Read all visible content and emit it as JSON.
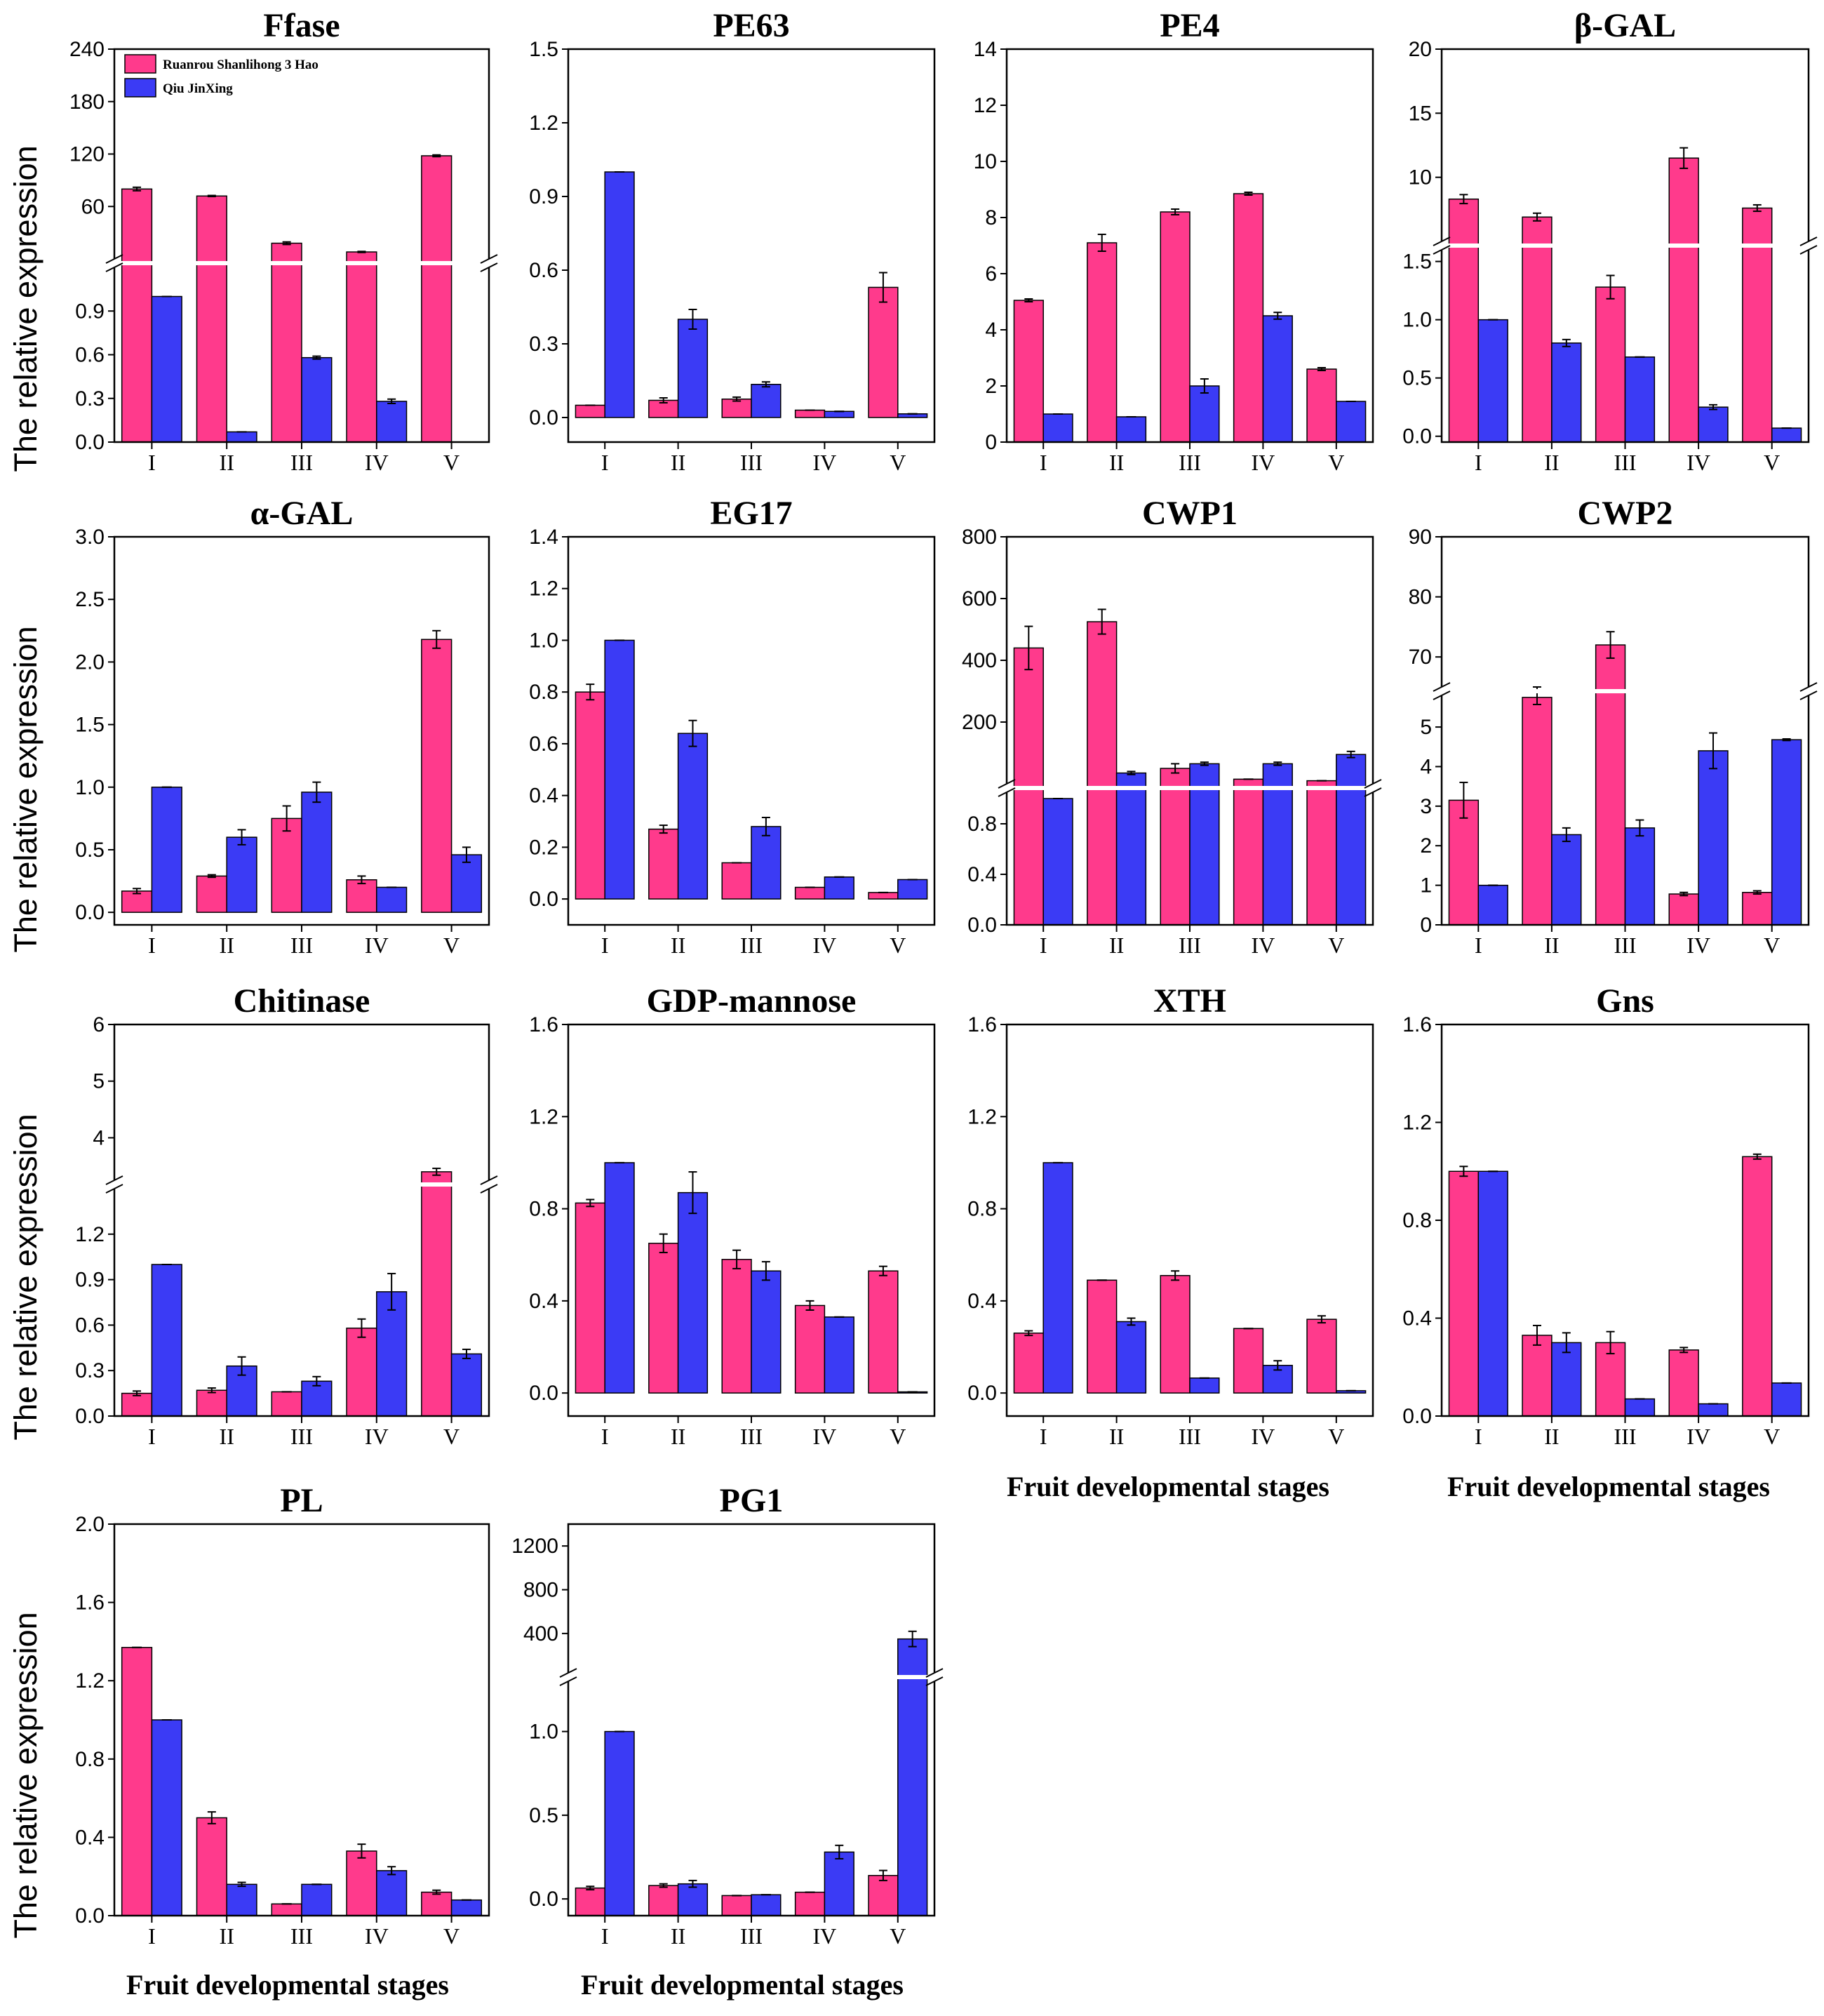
{
  "colors": {
    "ruanrou": "#ff3a8c",
    "qiu": "#3b3bf5",
    "axis": "#000000"
  },
  "legend": {
    "series": [
      "Ruanrou Shanlihong 3 Hao",
      "Qiu JinXing"
    ]
  },
  "labels": {
    "ylabel": "The relative expression",
    "xlabel": "Fruit developmental stages"
  },
  "chart_data": [
    {
      "type": "bar",
      "title": "Ffase",
      "categories": [
        "I",
        "II",
        "III",
        "IV",
        "V"
      ],
      "broken_axis": {
        "lower": [
          0,
          1.2
        ],
        "upper": [
          0,
          240
        ],
        "ticks_lower": [
          "0.0",
          "0.3",
          "0.6",
          "0.9"
        ],
        "ticks_upper": [
          "60",
          "120",
          "180",
          "240"
        ]
      },
      "series": [
        {
          "name": "Ruanrou Shanlihong 3 Hao",
          "values": [
            80,
            72,
            18,
            8,
            118
          ],
          "errors": [
            2,
            0.6,
            1.5,
            0.6,
            1
          ]
        },
        {
          "name": "Qiu JinXing",
          "values": [
            1.0,
            0.07,
            0.58,
            0.28,
            0
          ],
          "errors": [
            0,
            0,
            0.01,
            0.015,
            0
          ]
        }
      ]
    },
    {
      "type": "bar",
      "title": "PE63",
      "categories": [
        "I",
        "II",
        "III",
        "IV",
        "V"
      ],
      "ylim": [
        -0.1,
        1.5
      ],
      "yticks": [
        "0.0",
        "0.3",
        "0.6",
        "0.9",
        "1.2",
        "1.5"
      ],
      "series": [
        {
          "name": "Ruanrou Shanlihong 3 Hao",
          "values": [
            0.05,
            0.07,
            0.075,
            0.03,
            0.53
          ],
          "errors": [
            0,
            0.01,
            0.008,
            0,
            0.06
          ]
        },
        {
          "name": "Qiu JinXing",
          "values": [
            1.0,
            0.4,
            0.135,
            0.025,
            0.015
          ],
          "errors": [
            0,
            0.04,
            0.01,
            0,
            0
          ]
        }
      ]
    },
    {
      "type": "bar",
      "title": "PE4",
      "categories": [
        "I",
        "II",
        "III",
        "IV",
        "V"
      ],
      "ylim": [
        0,
        14
      ],
      "yticks": [
        "0",
        "2",
        "4",
        "6",
        "8",
        "10",
        "12",
        "14"
      ],
      "series": [
        {
          "name": "Ruanrou Shanlihong 3 Hao",
          "values": [
            5.05,
            7.1,
            8.2,
            8.85,
            2.6
          ],
          "errors": [
            0.05,
            0.3,
            0.1,
            0.05,
            0.05
          ]
        },
        {
          "name": "Qiu JinXing",
          "values": [
            1.0,
            0.9,
            2.0,
            4.5,
            1.45
          ],
          "errors": [
            0,
            0,
            0.25,
            0.12,
            0
          ]
        }
      ]
    },
    {
      "type": "bar",
      "title": "β-GAL",
      "categories": [
        "I",
        "II",
        "III",
        "IV",
        "V"
      ],
      "broken_axis": {
        "lower": [
          -0.05,
          1.6
        ],
        "upper": [
          5,
          20
        ],
        "ticks_lower": [
          "0.0",
          "0.5",
          "1.0",
          "1.5"
        ],
        "ticks_upper": [
          "10",
          "15",
          "20"
        ]
      },
      "series": [
        {
          "name": "Ruanrou Shanlihong 3 Hao",
          "values": [
            8.3,
            6.9,
            1.28,
            11.5,
            7.6
          ],
          "errors": [
            0.35,
            0.3,
            0.1,
            0.8,
            0.25
          ]
        },
        {
          "name": "Qiu JinXing",
          "values": [
            1.0,
            0.8,
            0.68,
            0.25,
            0.07
          ],
          "errors": [
            0,
            0.03,
            0,
            0.02,
            0
          ]
        }
      ]
    },
    {
      "type": "bar",
      "title": "α-GAL",
      "categories": [
        "I",
        "II",
        "III",
        "IV",
        "V"
      ],
      "ylim": [
        -0.1,
        3.0
      ],
      "yticks": [
        "0.0",
        "0.5",
        "1.0",
        "1.5",
        "2.0",
        "2.5",
        "3.0"
      ],
      "series": [
        {
          "name": "Ruanrou Shanlihong 3 Hao",
          "values": [
            0.17,
            0.29,
            0.75,
            0.26,
            2.18
          ],
          "errors": [
            0.02,
            0.01,
            0.1,
            0.03,
            0.07
          ]
        },
        {
          "name": "Qiu JinXing",
          "values": [
            1.0,
            0.6,
            0.96,
            0.2,
            0.46
          ],
          "errors": [
            0,
            0.06,
            0.08,
            0,
            0.06
          ]
        }
      ]
    },
    {
      "type": "bar",
      "title": "EG17",
      "categories": [
        "I",
        "II",
        "III",
        "IV",
        "V"
      ],
      "ylim": [
        -0.1,
        1.4
      ],
      "yticks": [
        "0.0",
        "0.2",
        "0.4",
        "0.6",
        "0.8",
        "1.0",
        "1.2",
        "1.4"
      ],
      "series": [
        {
          "name": "Ruanrou Shanlihong 3 Hao",
          "values": [
            0.8,
            0.27,
            0.14,
            0.045,
            0.025
          ],
          "errors": [
            0.03,
            0.015,
            0,
            0,
            0
          ]
        },
        {
          "name": "Qiu JinXing",
          "values": [
            1.0,
            0.64,
            0.28,
            0.085,
            0.075
          ],
          "errors": [
            0,
            0.05,
            0.035,
            0,
            0
          ]
        }
      ]
    },
    {
      "type": "bar",
      "title": "CWP1",
      "categories": [
        "I",
        "II",
        "III",
        "IV",
        "V"
      ],
      "broken_axis": {
        "lower": [
          0,
          1.05
        ],
        "upper": [
          0,
          800
        ],
        "ticks_lower": [
          "0.0",
          "0.4",
          "0.8"
        ],
        "ticks_upper": [
          "200",
          "400",
          "600",
          "800"
        ]
      },
      "series": [
        {
          "name": "Ruanrou Shanlihong 3 Hao",
          "values": [
            440,
            525,
            50,
            15,
            10
          ],
          "errors": [
            70,
            40,
            15,
            0,
            0
          ]
        },
        {
          "name": "Qiu JinXing",
          "values": [
            1.0,
            35,
            65,
            65,
            95
          ],
          "errors": [
            0,
            5,
            5,
            5,
            10
          ]
        }
      ]
    },
    {
      "type": "bar",
      "title": "CWP2",
      "categories": [
        "I",
        "II",
        "III",
        "IV",
        "V"
      ],
      "broken_axis": {
        "lower": [
          0,
          5.8
        ],
        "upper": [
          65,
          90
        ],
        "ticks_lower": [
          "0",
          "1",
          "2",
          "3",
          "4",
          "5"
        ],
        "ticks_upper": [
          "70",
          "80",
          "90"
        ]
      },
      "series": [
        {
          "name": "Ruanrou Shanlihong 3 Hao",
          "values": [
            3.15,
            5.75,
            72,
            0.78,
            0.82
          ],
          "errors": [
            0.45,
            0.18,
            2.2,
            0.04,
            0.04
          ]
        },
        {
          "name": "Qiu JinXing",
          "values": [
            1.0,
            2.28,
            2.45,
            4.4,
            4.68
          ],
          "errors": [
            0,
            0.17,
            0.2,
            0.45,
            0.02
          ]
        }
      ]
    },
    {
      "type": "bar",
      "title": "Chitinase",
      "categories": [
        "I",
        "II",
        "III",
        "IV",
        "V"
      ],
      "broken_axis": {
        "lower": [
          0,
          1.5
        ],
        "upper": [
          3.25,
          6
        ],
        "ticks_lower": [
          "0.0",
          "0.3",
          "0.6",
          "0.9",
          "1.2"
        ],
        "ticks_upper": [
          "4",
          "5",
          "6"
        ]
      },
      "series": [
        {
          "name": "Ruanrou Shanlihong 3 Hao",
          "values": [
            0.15,
            0.17,
            0.16,
            0.58,
            3.4
          ],
          "errors": [
            0.015,
            0.015,
            0,
            0.06,
            0.06
          ]
        },
        {
          "name": "Qiu JinXing",
          "values": [
            1.0,
            0.33,
            0.23,
            0.82,
            0.41
          ],
          "errors": [
            0,
            0.06,
            0.03,
            0.12,
            0.03
          ]
        }
      ]
    },
    {
      "type": "bar",
      "title": "GDP-mannose",
      "categories": [
        "I",
        "II",
        "III",
        "IV",
        "V"
      ],
      "ylim": [
        -0.1,
        1.6
      ],
      "yticks": [
        "0.0",
        "0.4",
        "0.8",
        "1.2",
        "1.6"
      ],
      "series": [
        {
          "name": "Ruanrou Shanlihong 3 Hao",
          "values": [
            0.825,
            0.65,
            0.58,
            0.38,
            0.53
          ],
          "errors": [
            0.015,
            0.04,
            0.04,
            0.02,
            0.02
          ]
        },
        {
          "name": "Qiu JinXing",
          "values": [
            1.0,
            0.87,
            0.53,
            0.33,
            0.005
          ],
          "errors": [
            0,
            0.09,
            0.04,
            0,
            0
          ]
        }
      ]
    },
    {
      "type": "bar",
      "title": "XTH",
      "categories": [
        "I",
        "II",
        "III",
        "IV",
        "V"
      ],
      "ylim": [
        -0.1,
        1.6
      ],
      "yticks": [
        "0.0",
        "0.4",
        "0.8",
        "1.2",
        "1.6"
      ],
      "series": [
        {
          "name": "Ruanrou Shanlihong 3 Hao",
          "values": [
            0.26,
            0.49,
            0.51,
            0.28,
            0.32
          ],
          "errors": [
            0.01,
            0,
            0.02,
            0,
            0.015
          ]
        },
        {
          "name": "Qiu JinXing",
          "values": [
            1.0,
            0.31,
            0.065,
            0.12,
            0.01
          ],
          "errors": [
            0,
            0.015,
            0,
            0.02,
            0
          ]
        }
      ]
    },
    {
      "type": "bar",
      "title": "Gns",
      "categories": [
        "I",
        "II",
        "III",
        "IV",
        "V"
      ],
      "ylim": [
        0,
        1.6
      ],
      "yticks": [
        "0.0",
        "0.4",
        "0.8",
        "1.2",
        "1.6"
      ],
      "series": [
        {
          "name": "Ruanrou Shanlihong 3 Hao",
          "values": [
            1.0,
            0.33,
            0.3,
            0.27,
            1.06
          ],
          "errors": [
            0.02,
            0.04,
            0.045,
            0.01,
            0.01
          ]
        },
        {
          "name": "Qiu JinXing",
          "values": [
            1.0,
            0.3,
            0.07,
            0.05,
            0.135
          ],
          "errors": [
            0,
            0.04,
            0,
            0,
            0
          ]
        }
      ]
    },
    {
      "type": "bar",
      "title": "PL",
      "categories": [
        "I",
        "II",
        "III",
        "IV",
        "V"
      ],
      "ylim": [
        0,
        2.0
      ],
      "yticks": [
        "0.0",
        "0.4",
        "0.8",
        "1.2",
        "1.6",
        "2.0"
      ],
      "series": [
        {
          "name": "Ruanrou Shanlihong 3 Hao",
          "values": [
            1.37,
            0.5,
            0.06,
            0.33,
            0.12
          ],
          "errors": [
            0,
            0.03,
            0,
            0.035,
            0.01
          ]
        },
        {
          "name": "Qiu JinXing",
          "values": [
            1.0,
            0.16,
            0.16,
            0.23,
            0.08
          ],
          "errors": [
            0,
            0.01,
            0,
            0.02,
            0
          ]
        }
      ]
    },
    {
      "type": "bar",
      "title": "PG1",
      "categories": [
        "I",
        "II",
        "III",
        "IV",
        "V"
      ],
      "broken_axis": {
        "lower": [
          -0.1,
          1.3
        ],
        "upper": [
          40,
          1400
        ],
        "ticks_lower": [
          "0.0",
          "0.5",
          "1.0"
        ],
        "ticks_upper": [
          "400",
          "800",
          "1200"
        ]
      },
      "series": [
        {
          "name": "Ruanrou Shanlihong 3 Hao",
          "values": [
            0.065,
            0.08,
            0.02,
            0.04,
            0.14
          ],
          "errors": [
            0.01,
            0.01,
            0,
            0,
            0.03
          ]
        },
        {
          "name": "Qiu JinXing",
          "values": [
            1.0,
            0.09,
            0.025,
            0.28,
            350
          ],
          "errors": [
            0,
            0.02,
            0,
            0.04,
            70
          ]
        }
      ]
    }
  ]
}
